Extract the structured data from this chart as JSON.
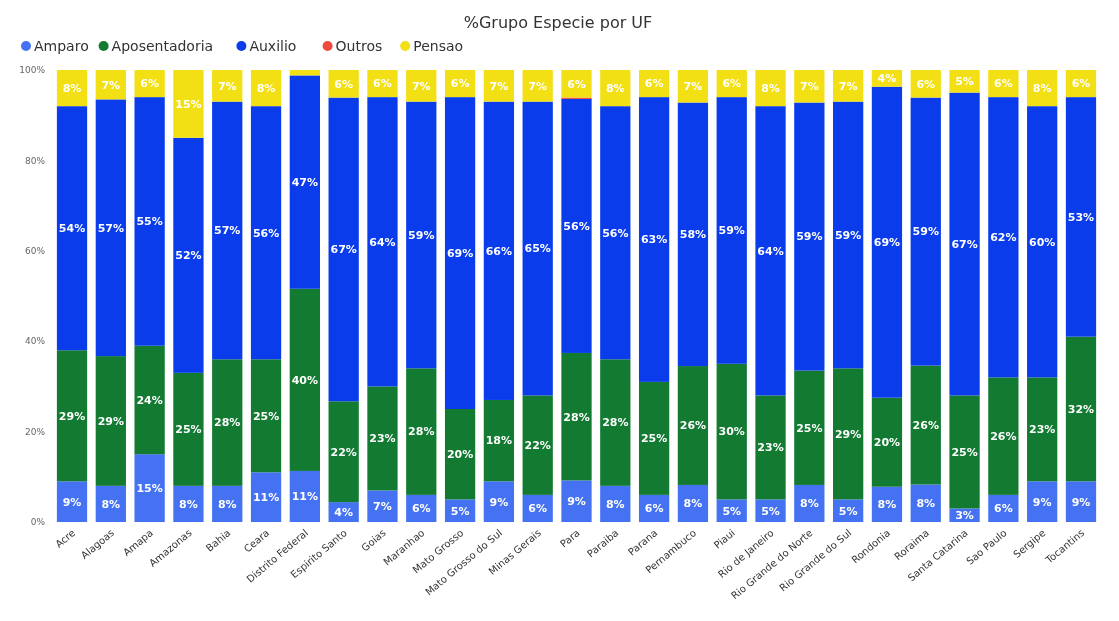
{
  "chart_data": {
    "type": "bar",
    "title": "%Grupo Especie por UF",
    "stacked": true,
    "legend": "top left",
    "grid": false,
    "categories": [
      "Acre",
      "Alagoas",
      "Amapa",
      "Amazonas",
      "Bahia",
      "Ceara",
      "Distrito Federal",
      "Espirito Santo",
      "Goias",
      "Maranhao",
      "Mato Grosso",
      "Mato Grosso do Sul",
      "Minas Gerais",
      "Para",
      "Paraiba",
      "Parana",
      "Pernambuco",
      "Piaui",
      "Rio de Janeiro",
      "Rio Grande do Norte",
      "Rio Grande do Sul",
      "Rondonia",
      "Roraima",
      "Santa Catarina",
      "Sao Paulo",
      "Sergipe",
      "Tocantins"
    ],
    "ylim": [
      0,
      100
    ],
    "yticks": [
      {
        "value": 0,
        "label": "0%"
      },
      {
        "value": 20,
        "label": "20%"
      },
      {
        "value": 40,
        "label": "40%"
      },
      {
        "value": 60,
        "label": "60%"
      },
      {
        "value": 80,
        "label": "80%"
      },
      {
        "value": 100,
        "label": "100%"
      }
    ],
    "series": [
      {
        "name": "Amparo",
        "color": "#4472f2",
        "values": [
          9,
          8,
          15,
          8,
          8,
          11,
          11.3,
          4.4,
          7,
          6,
          5,
          9,
          6,
          9.2,
          8,
          6,
          8.2,
          5,
          5,
          8.2,
          5,
          7.8,
          8.3,
          3,
          6,
          9,
          9
        ],
        "value_labels": [
          "9%",
          "8%",
          "15%",
          "8%",
          "8%",
          "11%",
          "11%",
          "4%",
          "7%",
          "6%",
          "5%",
          "9%",
          "6%",
          "9%",
          "8%",
          "6%",
          "8%",
          "5%",
          "5%",
          "8%",
          "5%",
          "8%",
          "8%",
          "3%",
          "6%",
          "9%",
          "9%"
        ]
      },
      {
        "name": "Aposentadoria",
        "color": "#127a31",
        "values": [
          29,
          28.7,
          24,
          25,
          28,
          25,
          40.3,
          22.3,
          23,
          28,
          20,
          18,
          22,
          28.2,
          28,
          25,
          26.3,
          30,
          23,
          25.3,
          29,
          19.7,
          26.3,
          25,
          26,
          23,
          32
        ],
        "value_labels": [
          "29%",
          "29%",
          "24%",
          "25%",
          "28%",
          "25%",
          "40%",
          "22%",
          "23%",
          "28%",
          "20%",
          "18%",
          "22%",
          "28%",
          "28%",
          "25%",
          "26%",
          "30%",
          "23%",
          "25%",
          "29%",
          "20%",
          "26%",
          "25%",
          "26%",
          "23%",
          "32%"
        ]
      },
      {
        "name": "Auxilio",
        "color": "#0a3cec",
        "values": [
          54,
          56.8,
          55,
          52,
          57,
          56,
          47.2,
          67.2,
          64,
          59,
          69,
          66,
          65,
          56.2,
          56,
          63,
          58.3,
          59,
          64,
          59.3,
          59,
          68.8,
          59.3,
          67,
          62,
          60,
          53
        ],
        "value_labels": [
          "54%",
          "57%",
          "55%",
          "52%",
          "57%",
          "56%",
          "47%",
          "67%",
          "64%",
          "59%",
          "69%",
          "66%",
          "65%",
          "56%",
          "56%",
          "63%",
          "58%",
          "59%",
          "64%",
          "59%",
          "59%",
          "69%",
          "59%",
          "67%",
          "62%",
          "60%",
          "53%"
        ]
      },
      {
        "name": "Outros",
        "color": "#ef4b3c",
        "values": [
          0,
          0,
          0,
          0,
          0,
          0,
          0,
          0,
          0,
          0,
          0,
          0,
          0,
          0.3,
          0,
          0,
          0,
          0,
          0,
          0,
          0,
          0,
          0,
          0,
          0,
          0,
          0
        ]
      },
      {
        "name": "Pensao",
        "color": "#f2df14",
        "values": [
          8,
          6.5,
          6,
          15,
          7,
          8,
          1.2,
          6.1,
          6,
          7,
          6,
          7,
          7,
          6.1,
          8,
          6,
          7.2,
          6,
          8,
          7.2,
          7,
          3.7,
          6.1,
          5,
          6,
          8,
          6
        ],
        "value_labels": [
          "8%",
          "7%",
          "6%",
          "15%",
          "7%",
          "8%",
          null,
          "6%",
          "6%",
          "7%",
          "6%",
          "7%",
          "7%",
          "6%",
          "8%",
          "6%",
          "7%",
          "6%",
          "8%",
          "7%",
          "7%",
          "4%",
          "6%",
          "5%",
          "6%",
          "8%",
          "6%"
        ]
      }
    ]
  }
}
